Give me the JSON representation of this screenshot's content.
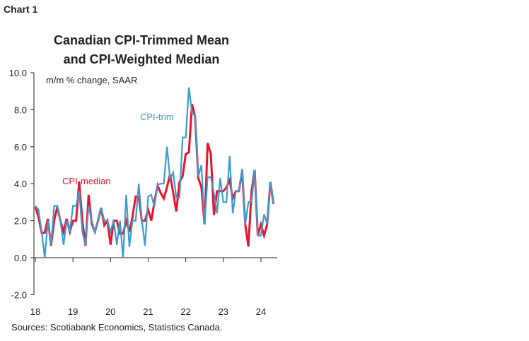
{
  "chart_label": "Chart 1",
  "chart_data": {
    "type": "line",
    "title": [
      "Canadian CPI-Trimmed Mean",
      "and CPI-Weighted Median"
    ],
    "subtitle": "m/m % change, SAAR",
    "source": "Sources: Scotiabank Economics, Statistics Canada.",
    "x_start": "2018-01",
    "x_frequency": "monthly",
    "x_ticks": [
      "18",
      "19",
      "20",
      "21",
      "22",
      "23",
      "24"
    ],
    "y_ticks": [
      "10.0",
      "8.0",
      "6.0",
      "4.0",
      "2.0",
      "0.0",
      "-2.0"
    ],
    "ylim": [
      -2,
      10
    ],
    "grid": false,
    "series": [
      {
        "name": "CPI-trim",
        "color": "#3d9bd0",
        "values": [
          2.8,
          2.6,
          1.4,
          0.0,
          2.0,
          0.7,
          2.8,
          2.8,
          2.0,
          0.7,
          2.0,
          1.4,
          2.8,
          2.8,
          3.6,
          1.4,
          0.7,
          2.8,
          2.0,
          1.4,
          2.0,
          2.7,
          2.0,
          2.0,
          1.4,
          2.0,
          0.7,
          2.0,
          0.0,
          3.4,
          0.6,
          2.0,
          2.0,
          4.0,
          2.0,
          0.65,
          3.3,
          3.4,
          2.75,
          3.95,
          4.0,
          4.0,
          6.0,
          4.25,
          4.6,
          3.25,
          3.25,
          6.5,
          6.5,
          9.2,
          7.8,
          7.7,
          4.4,
          5.0,
          1.8,
          4.35,
          4.35,
          3.5,
          2.4,
          4.3,
          3.0,
          3.0,
          5.5,
          2.4,
          3.6,
          3.6,
          4.8,
          1.8,
          3.0,
          3.0,
          4.75,
          1.2,
          1.2,
          2.35,
          1.8,
          4.1,
          2.9
        ]
      },
      {
        "name": "CPI-median",
        "color": "#e8142d",
        "values": [
          2.75,
          2.2,
          1.35,
          1.35,
          2.1,
          0.65,
          2.0,
          2.75,
          2.0,
          1.4,
          2.1,
          1.4,
          2.0,
          2.0,
          4.1,
          2.0,
          0.65,
          3.4,
          1.85,
          1.4,
          2.0,
          2.7,
          1.75,
          2.0,
          0.7,
          2.0,
          2.0,
          1.3,
          1.3,
          2.0,
          1.4,
          2.2,
          3.3,
          3.3,
          2.0,
          2.0,
          2.6,
          2.0,
          3.0,
          3.9,
          3.5,
          3.2,
          3.8,
          4.5,
          3.5,
          2.5,
          4.1,
          4.4,
          5.6,
          5.7,
          8.3,
          7.6,
          4.3,
          3.8,
          1.8,
          6.2,
          5.6,
          2.3,
          3.6,
          3.6,
          3.6,
          3.8,
          4.2,
          3.2,
          3.6,
          3.6,
          4.7,
          1.8,
          0.6,
          3.6,
          4.75,
          1.2,
          1.8,
          1.2,
          1.8,
          4.1,
          2.9
        ]
      }
    ]
  }
}
